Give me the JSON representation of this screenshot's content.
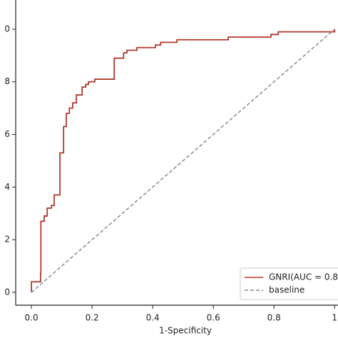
{
  "chart_data": {
    "type": "line",
    "xlabel": "1-Specificity",
    "xlim": [
      -0.052,
      1.07
    ],
    "ylim": [
      -0.049,
      1.111
    ],
    "xticks": [
      {
        "value": 0,
        "label": "0.0"
      },
      0.2,
      0.4,
      0.6,
      0.8,
      {
        "value": 1,
        "label": "1"
      }
    ],
    "yticks": [
      0,
      {
        "value": 0.2,
        "label": "2"
      },
      {
        "value": 0.4,
        "label": "4"
      },
      {
        "value": 0.6,
        "label": "6"
      },
      {
        "value": 0.8,
        "label": "8"
      },
      {
        "value": 1,
        "label": "0"
      }
    ],
    "legend": "lower right",
    "series": [
      {
        "name": "GNRI(AUC = 0.8",
        "color": "#b0392b",
        "dashed": false,
        "x": [
          0,
          0,
          0.03,
          0.03,
          0.031,
          0.031,
          0.042,
          0.042,
          0.052,
          0.052,
          0.066,
          0.066,
          0.075,
          0.075,
          0.094,
          0.094,
          0.106,
          0.106,
          0.115,
          0.115,
          0.125,
          0.125,
          0.136,
          0.136,
          0.148,
          0.148,
          0.167,
          0.167,
          0.179,
          0.179,
          0.188,
          0.188,
          0.209,
          0.209,
          0.273,
          0.273,
          0.304,
          0.304,
          0.315,
          0.315,
          0.348,
          0.348,
          0.409,
          0.409,
          0.426,
          0.426,
          0.48,
          0.48,
          0.649,
          0.649,
          0.79,
          0.79,
          0.814,
          0.814,
          1,
          1
        ],
        "values": [
          0,
          0.04,
          0.04,
          0.07,
          0.07,
          0.27,
          0.27,
          0.29,
          0.29,
          0.32,
          0.32,
          0.33,
          0.33,
          0.37,
          0.37,
          0.53,
          0.53,
          0.63,
          0.63,
          0.68,
          0.68,
          0.7,
          0.7,
          0.72,
          0.72,
          0.75,
          0.75,
          0.78,
          0.78,
          0.79,
          0.79,
          0.8,
          0.8,
          0.81,
          0.81,
          0.89,
          0.89,
          0.91,
          0.91,
          0.92,
          0.92,
          0.93,
          0.93,
          0.94,
          0.94,
          0.95,
          0.95,
          0.96,
          0.96,
          0.97,
          0.97,
          0.98,
          0.98,
          0.99,
          0.99,
          1
        ]
      },
      {
        "name": "baseline",
        "color": "#8a8a8a",
        "dashed": true,
        "x": [
          0,
          1
        ],
        "values": [
          0,
          1
        ]
      }
    ]
  }
}
